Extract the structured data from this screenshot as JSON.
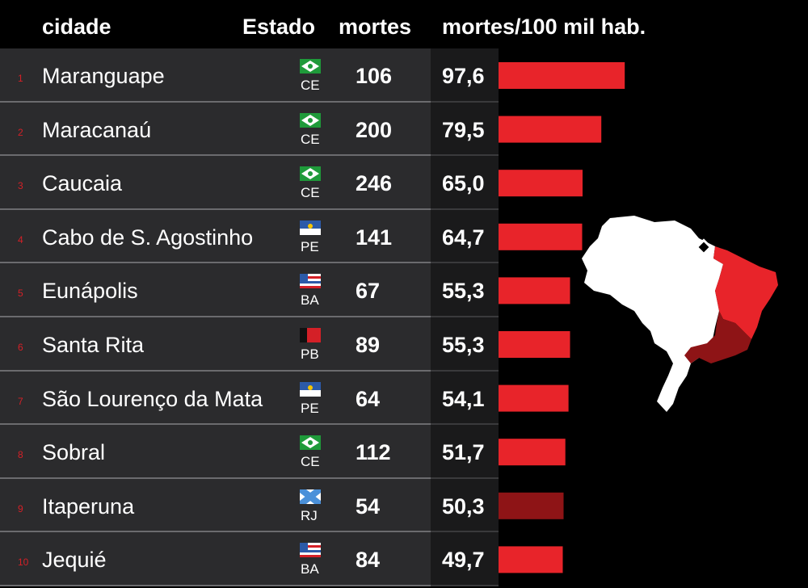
{
  "header": {
    "cidade": "cidade",
    "estado": "Estado",
    "mortes": "mortes",
    "rate": "mortes/100 mil hab."
  },
  "colors": {
    "bar_ne": "#e8242a",
    "bar_se": "#8e1416",
    "map_ne": "#e8242a",
    "map_se": "#8e1416",
    "map_rest": "#ffffff"
  },
  "map_icon": "brazil-map-icon",
  "chart_data": {
    "type": "bar",
    "orientation": "horizontal",
    "columns": [
      "cidade",
      "Estado",
      "mortes",
      "mortes/100 mil hab."
    ],
    "categories": [
      "Maranguape",
      "Maracanaú",
      "Caucaia",
      "Cabo de S. Agostinho",
      "Eunápolis",
      "Santa Rita",
      "São Lourenço da Mata",
      "Sobral",
      "Itaperuna",
      "Jequié"
    ],
    "rows": [
      {
        "rank": "1",
        "city": "Maranguape",
        "uf": "CE",
        "flag": "ce-flag-icon",
        "deaths": "106",
        "rate": "97,6",
        "value": 97.6,
        "region": "ne"
      },
      {
        "rank": "2",
        "city": "Maracanaú",
        "uf": "CE",
        "flag": "ce-flag-icon",
        "deaths": "200",
        "rate": "79,5",
        "value": 79.5,
        "region": "ne"
      },
      {
        "rank": "3",
        "city": "Caucaia",
        "uf": "CE",
        "flag": "ce-flag-icon",
        "deaths": "246",
        "rate": "65,0",
        "value": 65.0,
        "region": "ne"
      },
      {
        "rank": "4",
        "city": "Cabo de S. Agostinho",
        "uf": "PE",
        "flag": "pe-flag-icon",
        "deaths": "141",
        "rate": "64,7",
        "value": 64.7,
        "region": "ne"
      },
      {
        "rank": "5",
        "city": "Eunápolis",
        "uf": "BA",
        "flag": "ba-flag-icon",
        "deaths": "67",
        "rate": "55,3",
        "value": 55.3,
        "region": "ne"
      },
      {
        "rank": "6",
        "city": "Santa Rita",
        "uf": "PB",
        "flag": "pb-flag-icon",
        "deaths": "89",
        "rate": "55,3",
        "value": 55.3,
        "region": "ne"
      },
      {
        "rank": "7",
        "city": "São Lourenço da Mata",
        "uf": "PE",
        "flag": "pe-flag-icon",
        "deaths": "64",
        "rate": "54,1",
        "value": 54.1,
        "region": "ne"
      },
      {
        "rank": "8",
        "city": "Sobral",
        "uf": "CE",
        "flag": "ce-flag-icon",
        "deaths": "112",
        "rate": "51,7",
        "value": 51.7,
        "region": "ne"
      },
      {
        "rank": "9",
        "city": "Itaperuna",
        "uf": "RJ",
        "flag": "rj-flag-icon",
        "deaths": "54",
        "rate": "50,3",
        "value": 50.3,
        "region": "se"
      },
      {
        "rank": "10",
        "city": "Jequié",
        "uf": "BA",
        "flag": "ba-flag-icon",
        "deaths": "84",
        "rate": "49,7",
        "value": 49.7,
        "region": "ne"
      }
    ],
    "xlabel": "mortes/100 mil hab.",
    "grid": false,
    "legend": "none"
  }
}
